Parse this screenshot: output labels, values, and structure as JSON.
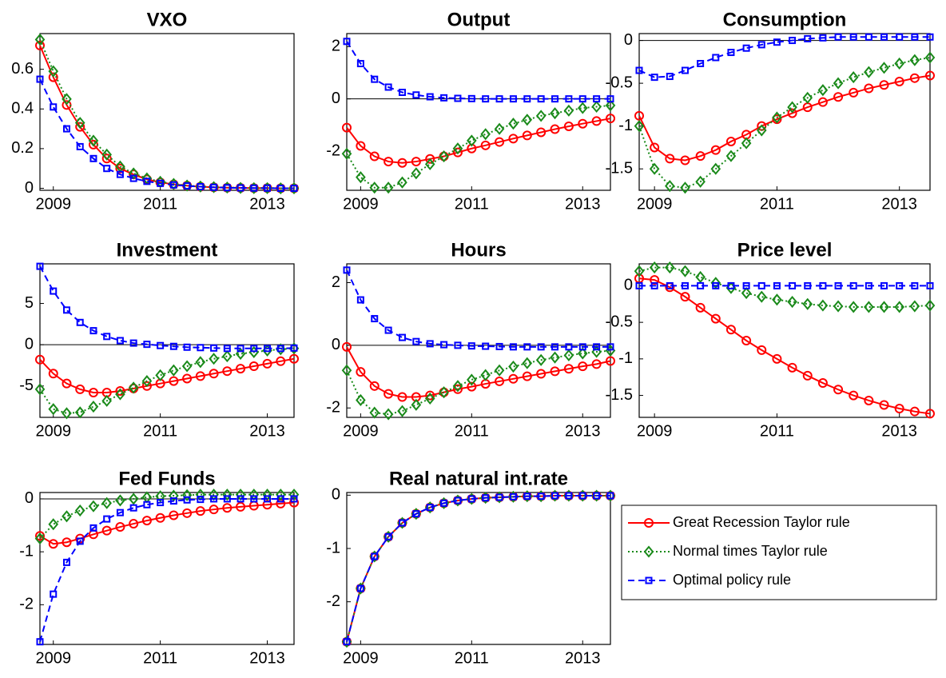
{
  "chart_data": [
    {
      "type": "line",
      "title": "VXO",
      "x": [
        2008.75,
        2009,
        2009.25,
        2009.5,
        2009.75,
        2010,
        2010.25,
        2010.5,
        2010.75,
        2011,
        2011.25,
        2011.5,
        2011.75,
        2012,
        2012.25,
        2012.5,
        2012.75,
        2013,
        2013.25,
        2013.5
      ],
      "xlim": [
        2008.75,
        2013.5
      ],
      "xticks": [
        2009,
        2011,
        2013
      ],
      "ylim": [
        -0.01,
        0.78
      ],
      "yticks": [
        0,
        0.2,
        0.4,
        0.6
      ],
      "zero_line": false,
      "series": [
        {
          "color": "#ff0000",
          "marker": "circle",
          "dash": "solid",
          "values": [
            0.72,
            0.56,
            0.42,
            0.31,
            0.22,
            0.15,
            0.1,
            0.07,
            0.045,
            0.03,
            0.02,
            0.013,
            0.008,
            0.005,
            0.003,
            0.002,
            0.001,
            0.001,
            0,
            0
          ]
        },
        {
          "color": "#1a8a1a",
          "marker": "diamond",
          "dash": "dotted",
          "values": [
            0.75,
            0.59,
            0.45,
            0.33,
            0.24,
            0.17,
            0.11,
            0.075,
            0.05,
            0.033,
            0.022,
            0.014,
            0.009,
            0.006,
            0.004,
            0.002,
            0.001,
            0.001,
            0,
            0
          ]
        },
        {
          "color": "#0000ff",
          "marker": "square",
          "dash": "dashed",
          "values": [
            0.55,
            0.41,
            0.3,
            0.21,
            0.15,
            0.1,
            0.07,
            0.05,
            0.035,
            0.025,
            0.017,
            0.012,
            0.008,
            0.005,
            0.003,
            0.002,
            0.001,
            0.001,
            0,
            0
          ]
        }
      ]
    },
    {
      "type": "line",
      "title": "Output",
      "x": [
        2008.75,
        2009,
        2009.25,
        2009.5,
        2009.75,
        2010,
        2010.25,
        2010.5,
        2010.75,
        2011,
        2011.25,
        2011.5,
        2011.75,
        2012,
        2012.25,
        2012.5,
        2012.75,
        2013,
        2013.25,
        2013.5
      ],
      "xlim": [
        2008.75,
        2013.5
      ],
      "xticks": [
        2009,
        2011,
        2013
      ],
      "ylim": [
        -3.5,
        2.5
      ],
      "yticks": [
        -2,
        0,
        2
      ],
      "zero_line": true,
      "series": [
        {
          "color": "#ff0000",
          "marker": "circle",
          "dash": "solid",
          "values": [
            -1.1,
            -1.8,
            -2.2,
            -2.4,
            -2.45,
            -2.4,
            -2.3,
            -2.2,
            -2.05,
            -1.9,
            -1.78,
            -1.65,
            -1.52,
            -1.4,
            -1.28,
            -1.16,
            -1.05,
            -0.95,
            -0.85,
            -0.75
          ]
        },
        {
          "color": "#1a8a1a",
          "marker": "diamond",
          "dash": "dotted",
          "values": [
            -2.1,
            -3.0,
            -3.4,
            -3.4,
            -3.2,
            -2.85,
            -2.5,
            -2.2,
            -1.9,
            -1.6,
            -1.35,
            -1.15,
            -0.95,
            -0.8,
            -0.65,
            -0.55,
            -0.45,
            -0.35,
            -0.3,
            -0.25
          ]
        },
        {
          "color": "#0000ff",
          "marker": "square",
          "dash": "dashed",
          "values": [
            2.2,
            1.35,
            0.75,
            0.45,
            0.25,
            0.15,
            0.08,
            0.04,
            0.02,
            0.01,
            0,
            0,
            0,
            0,
            0,
            0,
            0,
            0,
            0,
            0
          ]
        }
      ]
    },
    {
      "type": "line",
      "title": "Consumption",
      "x": [
        2008.75,
        2009,
        2009.25,
        2009.5,
        2009.75,
        2010,
        2010.25,
        2010.5,
        2010.75,
        2011,
        2011.25,
        2011.5,
        2011.75,
        2012,
        2012.25,
        2012.5,
        2012.75,
        2013,
        2013.25,
        2013.5
      ],
      "xlim": [
        2008.75,
        2013.5
      ],
      "xticks": [
        2009,
        2011,
        2013
      ],
      "ylim": [
        -1.75,
        0.08
      ],
      "yticks": [
        -1.5,
        -1,
        -0.5,
        0
      ],
      "zero_line": true,
      "series": [
        {
          "color": "#ff0000",
          "marker": "circle",
          "dash": "solid",
          "values": [
            -0.88,
            -1.25,
            -1.38,
            -1.4,
            -1.35,
            -1.28,
            -1.18,
            -1.1,
            -1.0,
            -0.92,
            -0.85,
            -0.78,
            -0.72,
            -0.66,
            -0.61,
            -0.56,
            -0.52,
            -0.48,
            -0.44,
            -0.41
          ]
        },
        {
          "color": "#1a8a1a",
          "marker": "diamond",
          "dash": "dotted",
          "values": [
            -1.0,
            -1.5,
            -1.7,
            -1.72,
            -1.65,
            -1.5,
            -1.35,
            -1.2,
            -1.05,
            -0.9,
            -0.78,
            -0.67,
            -0.58,
            -0.5,
            -0.43,
            -0.37,
            -0.32,
            -0.27,
            -0.23,
            -0.2
          ]
        },
        {
          "color": "#0000ff",
          "marker": "square",
          "dash": "dashed",
          "values": [
            -0.35,
            -0.43,
            -0.42,
            -0.35,
            -0.27,
            -0.2,
            -0.14,
            -0.09,
            -0.05,
            -0.02,
            0,
            0.02,
            0.03,
            0.04,
            0.04,
            0.04,
            0.04,
            0.04,
            0.04,
            0.04
          ]
        }
      ]
    },
    {
      "type": "line",
      "title": "Investment",
      "x": [
        2008.75,
        2009,
        2009.25,
        2009.5,
        2009.75,
        2010,
        2010.25,
        2010.5,
        2010.75,
        2011,
        2011.25,
        2011.5,
        2011.75,
        2012,
        2012.25,
        2012.5,
        2012.75,
        2013,
        2013.25,
        2013.5
      ],
      "xlim": [
        2008.75,
        2013.5
      ],
      "xticks": [
        2009,
        2011,
        2013
      ],
      "ylim": [
        -8.8,
        9.8
      ],
      "yticks": [
        -5,
        0,
        5
      ],
      "zero_line": true,
      "series": [
        {
          "color": "#ff0000",
          "marker": "circle",
          "dash": "solid",
          "values": [
            -1.8,
            -3.5,
            -4.7,
            -5.4,
            -5.8,
            -5.8,
            -5.6,
            -5.3,
            -5.0,
            -4.7,
            -4.4,
            -4.1,
            -3.8,
            -3.5,
            -3.2,
            -2.9,
            -2.6,
            -2.3,
            -2.0,
            -1.7
          ]
        },
        {
          "color": "#1a8a1a",
          "marker": "diamond",
          "dash": "dotted",
          "values": [
            -5.4,
            -7.8,
            -8.3,
            -8.2,
            -7.5,
            -6.8,
            -6.0,
            -5.2,
            -4.4,
            -3.7,
            -3.1,
            -2.6,
            -2.1,
            -1.7,
            -1.4,
            -1.1,
            -0.9,
            -0.7,
            -0.55,
            -0.45
          ]
        },
        {
          "color": "#0000ff",
          "marker": "square",
          "dash": "dashed",
          "values": [
            9.5,
            6.5,
            4.2,
            2.7,
            1.7,
            1.0,
            0.5,
            0.2,
            0.05,
            -0.1,
            -0.2,
            -0.3,
            -0.35,
            -0.4,
            -0.45,
            -0.45,
            -0.45,
            -0.45,
            -0.45,
            -0.4
          ]
        }
      ]
    },
    {
      "type": "line",
      "title": "Hours",
      "x": [
        2008.75,
        2009,
        2009.25,
        2009.5,
        2009.75,
        2010,
        2010.25,
        2010.5,
        2010.75,
        2011,
        2011.25,
        2011.5,
        2011.75,
        2012,
        2012.25,
        2012.5,
        2012.75,
        2013,
        2013.25,
        2013.5
      ],
      "xlim": [
        2008.75,
        2013.5
      ],
      "xticks": [
        2009,
        2011,
        2013
      ],
      "ylim": [
        -2.3,
        2.6
      ],
      "yticks": [
        -2,
        0,
        2
      ],
      "zero_line": true,
      "series": [
        {
          "color": "#ff0000",
          "marker": "circle",
          "dash": "solid",
          "values": [
            -0.05,
            -0.85,
            -1.3,
            -1.55,
            -1.65,
            -1.65,
            -1.6,
            -1.5,
            -1.4,
            -1.32,
            -1.23,
            -1.15,
            -1.07,
            -0.99,
            -0.91,
            -0.83,
            -0.75,
            -0.67,
            -0.6,
            -0.5
          ]
        },
        {
          "color": "#1a8a1a",
          "marker": "diamond",
          "dash": "dotted",
          "values": [
            -0.8,
            -1.75,
            -2.15,
            -2.2,
            -2.1,
            -1.9,
            -1.7,
            -1.5,
            -1.3,
            -1.1,
            -0.95,
            -0.8,
            -0.68,
            -0.57,
            -0.47,
            -0.39,
            -0.32,
            -0.26,
            -0.21,
            -0.17
          ]
        },
        {
          "color": "#0000ff",
          "marker": "square",
          "dash": "dashed",
          "values": [
            2.4,
            1.45,
            0.85,
            0.48,
            0.25,
            0.12,
            0.05,
            0.02,
            0,
            -0.02,
            -0.03,
            -0.04,
            -0.05,
            -0.05,
            -0.05,
            -0.05,
            -0.05,
            -0.05,
            -0.05,
            -0.05
          ]
        }
      ]
    },
    {
      "type": "line",
      "title": "Price level",
      "x": [
        2008.75,
        2009,
        2009.25,
        2009.5,
        2009.75,
        2010,
        2010.25,
        2010.5,
        2010.75,
        2011,
        2011.25,
        2011.5,
        2011.75,
        2012,
        2012.25,
        2012.5,
        2012.75,
        2013,
        2013.25,
        2013.5
      ],
      "xlim": [
        2008.75,
        2013.5
      ],
      "xticks": [
        2009,
        2011,
        2013
      ],
      "ylim": [
        -1.8,
        0.3
      ],
      "yticks": [
        -1.5,
        -1,
        -0.5,
        0
      ],
      "zero_line": false,
      "series": [
        {
          "color": "#ff0000",
          "marker": "circle",
          "dash": "solid",
          "values": [
            0.1,
            0.08,
            -0.02,
            -0.15,
            -0.3,
            -0.45,
            -0.6,
            -0.75,
            -0.88,
            -1.0,
            -1.12,
            -1.23,
            -1.33,
            -1.42,
            -1.5,
            -1.57,
            -1.63,
            -1.68,
            -1.72,
            -1.75
          ]
        },
        {
          "color": "#1a8a1a",
          "marker": "diamond",
          "dash": "dotted",
          "values": [
            0.2,
            0.25,
            0.25,
            0.2,
            0.12,
            0.04,
            -0.03,
            -0.1,
            -0.15,
            -0.19,
            -0.22,
            -0.25,
            -0.27,
            -0.28,
            -0.29,
            -0.29,
            -0.29,
            -0.29,
            -0.28,
            -0.27
          ]
        },
        {
          "color": "#0000ff",
          "marker": "square",
          "dash": "dashed",
          "values": [
            0,
            0,
            0,
            0,
            0,
            0,
            0,
            0,
            0,
            0,
            0,
            0,
            0,
            0,
            0,
            0,
            0,
            0,
            0,
            0
          ]
        }
      ]
    },
    {
      "type": "line",
      "title": "Fed Funds",
      "x": [
        2008.75,
        2009,
        2009.25,
        2009.5,
        2009.75,
        2010,
        2010.25,
        2010.5,
        2010.75,
        2011,
        2011.25,
        2011.5,
        2011.75,
        2012,
        2012.25,
        2012.5,
        2012.75,
        2013,
        2013.25,
        2013.5
      ],
      "xlim": [
        2008.75,
        2013.5
      ],
      "xticks": [
        2009,
        2011,
        2013
      ],
      "ylim": [
        -2.75,
        0.12
      ],
      "yticks": [
        -2,
        -1,
        0
      ],
      "zero_line": true,
      "series": [
        {
          "color": "#ff0000",
          "marker": "circle",
          "dash": "solid",
          "values": [
            -0.7,
            -0.85,
            -0.82,
            -0.75,
            -0.67,
            -0.6,
            -0.53,
            -0.47,
            -0.41,
            -0.36,
            -0.31,
            -0.27,
            -0.23,
            -0.2,
            -0.17,
            -0.15,
            -0.13,
            -0.11,
            -0.09,
            -0.07
          ]
        },
        {
          "color": "#1a8a1a",
          "marker": "diamond",
          "dash": "dotted",
          "values": [
            -0.75,
            -0.48,
            -0.33,
            -0.22,
            -0.14,
            -0.08,
            -0.03,
            0,
            0.03,
            0.05,
            0.06,
            0.07,
            0.08,
            0.08,
            0.08,
            0.08,
            0.08,
            0.08,
            0.08,
            0.08
          ]
        },
        {
          "color": "#0000ff",
          "marker": "square",
          "dash": "dashed",
          "values": [
            -2.7,
            -1.8,
            -1.2,
            -0.8,
            -0.55,
            -0.38,
            -0.26,
            -0.17,
            -0.11,
            -0.07,
            -0.04,
            -0.02,
            -0.01,
            0,
            0,
            0,
            0,
            0,
            0,
            0
          ]
        }
      ]
    },
    {
      "type": "line",
      "title": "Real natural int.rate",
      "legend": "right",
      "x": [
        2008.75,
        2009,
        2009.25,
        2009.5,
        2009.75,
        2010,
        2010.25,
        2010.5,
        2010.75,
        2011,
        2011.25,
        2011.5,
        2011.75,
        2012,
        2012.25,
        2012.5,
        2012.75,
        2013,
        2013.25,
        2013.5
      ],
      "xlim": [
        2008.75,
        2013.5
      ],
      "xticks": [
        2009,
        2011,
        2013
      ],
      "ylim": [
        -2.8,
        0.05
      ],
      "yticks": [
        -2,
        -1,
        0
      ],
      "zero_line": false,
      "series": [
        {
          "name": "Great Recession Taylor rule",
          "color": "#ff0000",
          "marker": "circle",
          "dash": "solid",
          "values": [
            -2.75,
            -1.75,
            -1.15,
            -0.78,
            -0.52,
            -0.35,
            -0.23,
            -0.15,
            -0.1,
            -0.07,
            -0.05,
            -0.04,
            -0.03,
            -0.02,
            -0.02,
            -0.01,
            -0.01,
            -0.01,
            -0.01,
            -0.01
          ]
        },
        {
          "name": "Normal times Taylor rule",
          "color": "#1a8a1a",
          "marker": "diamond",
          "dash": "dotted",
          "values": [
            -2.75,
            -1.75,
            -1.15,
            -0.78,
            -0.52,
            -0.35,
            -0.23,
            -0.15,
            -0.1,
            -0.07,
            -0.05,
            -0.04,
            -0.03,
            -0.02,
            -0.02,
            -0.01,
            -0.01,
            -0.01,
            -0.01,
            -0.01
          ]
        },
        {
          "name": "Optimal policy rule",
          "color": "#0000ff",
          "marker": "square",
          "dash": "dashed",
          "values": [
            -2.75,
            -1.75,
            -1.15,
            -0.78,
            -0.52,
            -0.35,
            -0.23,
            -0.15,
            -0.1,
            -0.07,
            -0.05,
            -0.04,
            -0.03,
            -0.02,
            -0.02,
            -0.01,
            -0.01,
            -0.01,
            -0.01,
            -0.01
          ]
        }
      ]
    }
  ]
}
